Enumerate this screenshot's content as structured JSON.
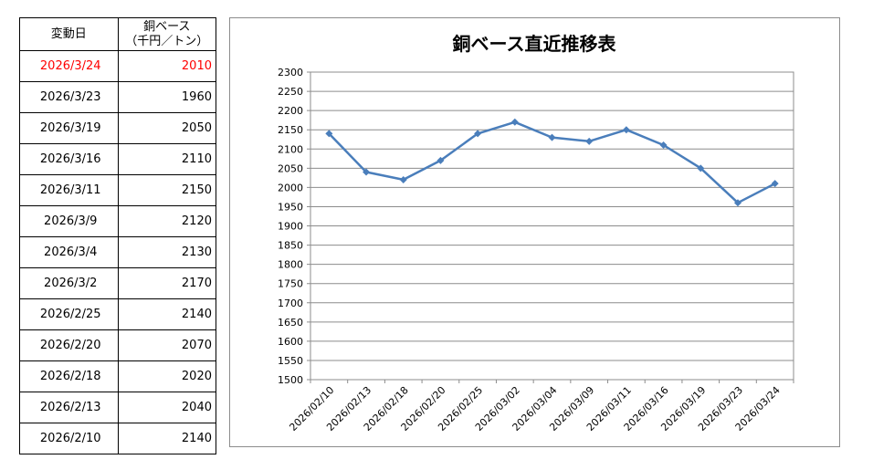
{
  "table": {
    "header": {
      "date": "変動日",
      "price_line1": "銅ベース",
      "price_line2": "（千円／トン）"
    },
    "rows": [
      {
        "date": "2026/3/24",
        "price": "2010",
        "highlight": true
      },
      {
        "date": "2026/3/23",
        "price": "1960"
      },
      {
        "date": "2026/3/19",
        "price": "2050"
      },
      {
        "date": "2026/3/16",
        "price": "2110"
      },
      {
        "date": "2026/3/11",
        "price": "2150"
      },
      {
        "date": "2026/3/9",
        "price": "2120"
      },
      {
        "date": "2026/3/4",
        "price": "2130"
      },
      {
        "date": "2026/3/2",
        "price": "2170"
      },
      {
        "date": "2026/2/25",
        "price": "2140"
      },
      {
        "date": "2026/2/20",
        "price": "2070"
      },
      {
        "date": "2026/2/18",
        "price": "2020"
      },
      {
        "date": "2026/2/13",
        "price": "2040"
      },
      {
        "date": "2026/2/10",
        "price": "2140"
      }
    ],
    "highlight_color": "#ff0000"
  },
  "chart_data": {
    "type": "line",
    "title": "銅ベース直近推移表",
    "categories": [
      "2026/02/10",
      "2026/02/13",
      "2026/02/18",
      "2026/02/20",
      "2026/02/25",
      "2026/03/02",
      "2026/03/04",
      "2026/03/09",
      "2026/03/11",
      "2026/03/16",
      "2026/03/19",
      "2026/03/23",
      "2026/03/24"
    ],
    "values": [
      2140,
      2040,
      2020,
      2070,
      2140,
      2170,
      2130,
      2120,
      2150,
      2110,
      2050,
      1960,
      2010
    ],
    "ylim": [
      1500,
      2300
    ],
    "ytick_step": 50,
    "grid": true,
    "legend": "none",
    "line_color": "#4a7ebb",
    "xlabel": "",
    "ylabel": ""
  }
}
